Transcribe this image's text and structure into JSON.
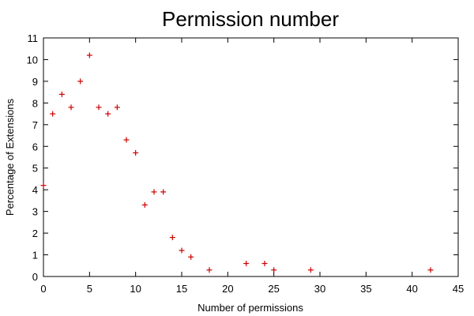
{
  "chart_data": {
    "type": "scatter",
    "title": "Permission number",
    "xlabel": "Number of permissions",
    "ylabel": "Percentage of Extensions",
    "xlim": [
      0,
      45
    ],
    "ylim": [
      0,
      11
    ],
    "xticks": [
      "0",
      "5",
      "10",
      "15",
      "20",
      "25",
      "30",
      "35",
      "40",
      "45"
    ],
    "yticks": [
      "0",
      "1",
      "2",
      "3",
      "4",
      "5",
      "6",
      "7",
      "8",
      "9",
      "10",
      "11"
    ],
    "grid": false,
    "marker": "plus",
    "color": "#cc0000",
    "series": [
      {
        "points": [
          [
            0,
            4.2
          ],
          [
            1,
            7.5
          ],
          [
            2,
            8.4
          ],
          [
            3,
            7.8
          ],
          [
            4,
            9.0
          ],
          [
            5,
            10.2
          ],
          [
            6,
            7.8
          ],
          [
            7,
            7.5
          ],
          [
            8,
            7.8
          ],
          [
            9,
            6.3
          ],
          [
            10,
            5.7
          ],
          [
            11,
            3.3
          ],
          [
            12,
            3.9
          ],
          [
            13,
            3.9
          ],
          [
            14,
            1.8
          ],
          [
            15,
            1.2
          ],
          [
            16,
            0.9
          ],
          [
            18,
            0.3
          ],
          [
            22,
            0.6
          ],
          [
            24,
            0.6
          ],
          [
            25,
            0.3
          ],
          [
            29,
            0.3
          ],
          [
            42,
            0.3
          ]
        ]
      }
    ]
  }
}
